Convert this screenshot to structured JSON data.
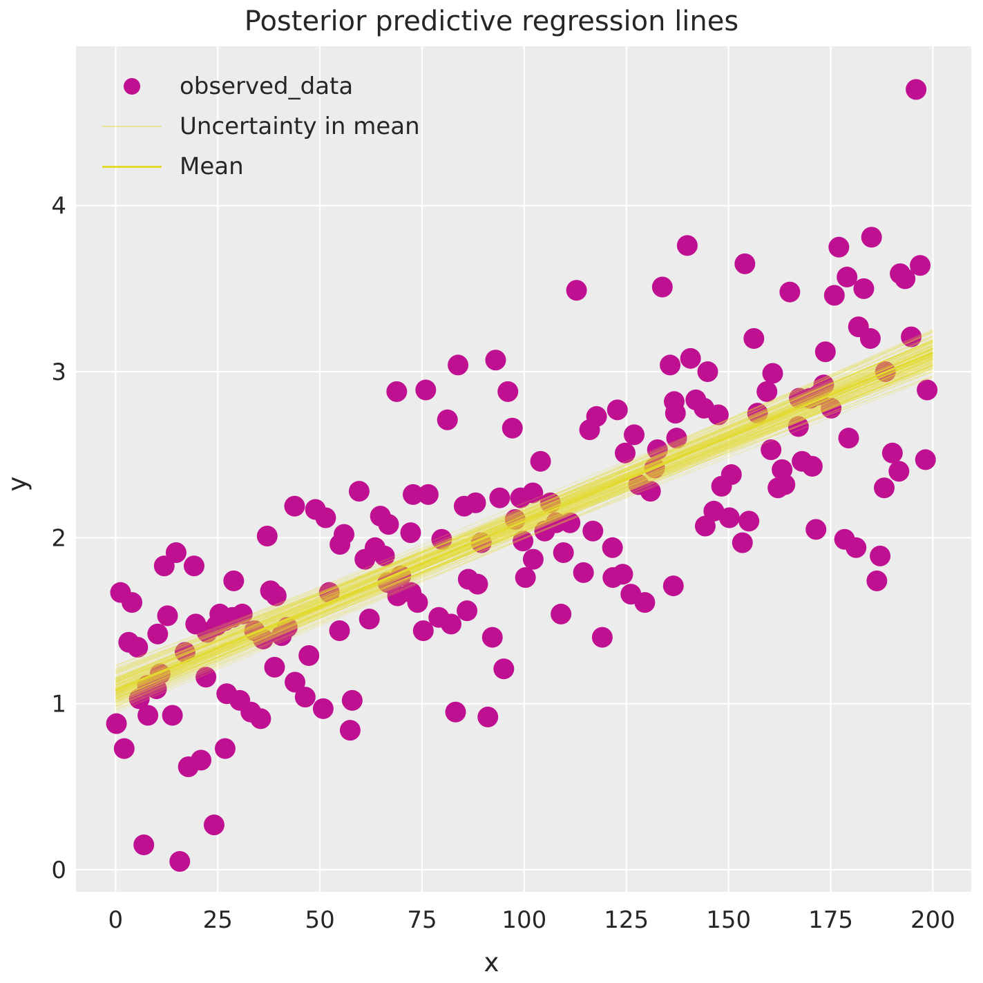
{
  "title": "Posterior predictive regression lines",
  "xlabel": "x",
  "ylabel": "y",
  "legend": [
    {
      "label": "observed_data",
      "marker": "dot"
    },
    {
      "label": "Uncertainty in mean",
      "marker": "thin-line"
    },
    {
      "label": "Mean",
      "marker": "line"
    }
  ],
  "colors": {
    "scatter": "#bf1091",
    "mean_line": "#e2da2e",
    "uncertainty_line": "#e2da2e",
    "uncertainty_opacity": 0.22,
    "plot_background": "#ececec",
    "gridline": "#ffffff",
    "text": "#262626"
  },
  "axes": {
    "xlim": [
      -9.7,
      209.4
    ],
    "ylim": [
      -0.133,
      4.96
    ],
    "x_tick_values": [
      0,
      25,
      50,
      75,
      100,
      125,
      150,
      175,
      200
    ],
    "x_tick_labels": [
      "0",
      "25",
      "50",
      "75",
      "100",
      "125",
      "150",
      "175",
      "200"
    ],
    "y_tick_values": [
      0,
      1,
      2,
      3,
      4
    ],
    "y_tick_labels": [
      "0",
      "1",
      "2",
      "3",
      "4"
    ],
    "grid": true
  },
  "chart_data": {
    "type": "scatter",
    "title": "Posterior predictive regression lines",
    "xlabel": "x",
    "ylabel": "y",
    "series": [
      {
        "name": "observed_data",
        "points": [
          [
            0.2,
            0.88
          ],
          [
            1.2,
            1.67
          ],
          [
            2.1,
            0.73
          ],
          [
            3.2,
            1.37
          ],
          [
            4.0,
            1.61
          ],
          [
            5.4,
            1.34
          ],
          [
            5.8,
            1.03
          ],
          [
            6.9,
            0.15
          ],
          [
            7.8,
            1.11
          ],
          [
            7.9,
            0.93
          ],
          [
            10.0,
            1.09
          ],
          [
            10.3,
            1.42
          ],
          [
            10.9,
            1.18
          ],
          [
            11.9,
            1.83
          ],
          [
            12.7,
            1.53
          ],
          [
            13.9,
            0.93
          ],
          [
            14.8,
            1.91
          ],
          [
            15.7,
            0.05
          ],
          [
            17.0,
            1.31
          ],
          [
            17.8,
            0.62
          ],
          [
            19.2,
            1.83
          ],
          [
            19.6,
            1.48
          ],
          [
            20.9,
            0.66
          ],
          [
            22.1,
            1.16
          ],
          [
            22.4,
            1.43
          ],
          [
            24.1,
            0.27
          ],
          [
            24.7,
            1.47
          ],
          [
            25.5,
            1.54
          ],
          [
            26.7,
            1.5
          ],
          [
            26.8,
            0.73
          ],
          [
            27.2,
            1.06
          ],
          [
            28.6,
            1.52
          ],
          [
            28.9,
            1.74
          ],
          [
            30.4,
            1.02
          ],
          [
            31.0,
            1.54
          ],
          [
            33.1,
            0.95
          ],
          [
            34.0,
            1.44
          ],
          [
            35.5,
            0.91
          ],
          [
            36.1,
            1.39
          ],
          [
            37.1,
            2.01
          ],
          [
            37.9,
            1.68
          ],
          [
            38.9,
            1.22
          ],
          [
            39.3,
            1.65
          ],
          [
            40.6,
            1.41
          ],
          [
            42.0,
            1.46
          ],
          [
            43.8,
            2.19
          ],
          [
            43.9,
            1.13
          ],
          [
            46.4,
            1.04
          ],
          [
            47.3,
            1.29
          ],
          [
            48.9,
            2.17
          ],
          [
            50.8,
            0.97
          ],
          [
            51.4,
            2.12
          ],
          [
            52.3,
            1.67
          ],
          [
            54.8,
            1.44
          ],
          [
            54.9,
            1.96
          ],
          [
            55.9,
            2.02
          ],
          [
            57.4,
            0.84
          ],
          [
            57.9,
            1.02
          ],
          [
            59.6,
            2.28
          ],
          [
            61.0,
            1.87
          ],
          [
            62.1,
            1.51
          ],
          [
            63.5,
            1.94
          ],
          [
            64.8,
            2.13
          ],
          [
            65.8,
            1.89
          ],
          [
            66.6,
            1.73
          ],
          [
            66.8,
            2.08
          ],
          [
            68.8,
            2.88
          ],
          [
            69.0,
            1.65
          ],
          [
            69.8,
            1.77
          ],
          [
            72.2,
            2.03
          ],
          [
            72.3,
            1.67
          ],
          [
            72.8,
            2.26
          ],
          [
            73.9,
            1.61
          ],
          [
            75.3,
            1.44
          ],
          [
            75.9,
            2.89
          ],
          [
            76.5,
            2.26
          ],
          [
            79.1,
            1.52
          ],
          [
            79.8,
            1.99
          ],
          [
            81.2,
            2.71
          ],
          [
            82.1,
            1.48
          ],
          [
            83.2,
            0.95
          ],
          [
            83.8,
            3.04
          ],
          [
            85.3,
            2.19
          ],
          [
            86.0,
            1.56
          ],
          [
            86.3,
            1.75
          ],
          [
            88.1,
            2.21
          ],
          [
            88.6,
            1.72
          ],
          [
            89.5,
            1.97
          ],
          [
            91.1,
            0.92
          ],
          [
            92.2,
            1.4
          ],
          [
            93.0,
            3.07
          ],
          [
            94.0,
            2.24
          ],
          [
            95.0,
            1.21
          ],
          [
            96.0,
            2.88
          ],
          [
            97.1,
            2.66
          ],
          [
            97.8,
            2.11
          ],
          [
            99.1,
            2.24
          ],
          [
            99.7,
            1.98
          ],
          [
            100.3,
            1.76
          ],
          [
            102.1,
            2.27
          ],
          [
            102.2,
            1.87
          ],
          [
            104.0,
            2.46
          ],
          [
            105.0,
            2.04
          ],
          [
            106.4,
            2.21
          ],
          [
            107.8,
            2.09
          ],
          [
            109.0,
            1.54
          ],
          [
            109.6,
            1.91
          ],
          [
            111.2,
            2.09
          ],
          [
            112.8,
            3.49
          ],
          [
            114.5,
            1.79
          ],
          [
            116.0,
            2.65
          ],
          [
            116.8,
            2.04
          ],
          [
            117.7,
            2.73
          ],
          [
            119.1,
            1.4
          ],
          [
            121.6,
            1.94
          ],
          [
            121.7,
            1.76
          ],
          [
            122.8,
            2.77
          ],
          [
            124.1,
            1.78
          ],
          [
            124.7,
            2.51
          ],
          [
            126.1,
            1.66
          ],
          [
            126.9,
            2.62
          ],
          [
            128.0,
            2.32
          ],
          [
            129.5,
            1.61
          ],
          [
            130.9,
            2.28
          ],
          [
            131.9,
            2.42
          ],
          [
            132.6,
            2.53
          ],
          [
            133.8,
            3.51
          ],
          [
            135.7,
            3.04
          ],
          [
            136.5,
            1.71
          ],
          [
            136.7,
            2.82
          ],
          [
            137.0,
            2.75
          ],
          [
            137.3,
            2.6
          ],
          [
            139.9,
            3.76
          ],
          [
            140.7,
            3.08
          ],
          [
            142.0,
            2.83
          ],
          [
            144.0,
            2.78
          ],
          [
            144.3,
            2.07
          ],
          [
            144.9,
            3.0
          ],
          [
            146.4,
            2.16
          ],
          [
            147.5,
            2.74
          ],
          [
            148.3,
            2.31
          ],
          [
            150.2,
            2.12
          ],
          [
            150.7,
            2.38
          ],
          [
            153.4,
            1.97
          ],
          [
            154.0,
            3.65
          ],
          [
            155.0,
            2.1
          ],
          [
            156.2,
            3.2
          ],
          [
            157.1,
            2.75
          ],
          [
            159.4,
            2.88
          ],
          [
            160.4,
            2.53
          ],
          [
            160.8,
            2.99
          ],
          [
            162.1,
            2.3
          ],
          [
            163.1,
            2.41
          ],
          [
            163.8,
            2.32
          ],
          [
            165.0,
            3.48
          ],
          [
            167.1,
            2.67
          ],
          [
            167.3,
            2.84
          ],
          [
            168.0,
            2.46
          ],
          [
            170.0,
            2.84
          ],
          [
            170.5,
            2.43
          ],
          [
            171.4,
            2.05
          ],
          [
            172.0,
            2.86
          ],
          [
            173.3,
            2.92
          ],
          [
            173.7,
            3.12
          ],
          [
            175.1,
            2.78
          ],
          [
            175.9,
            3.46
          ],
          [
            177.0,
            3.75
          ],
          [
            178.4,
            1.99
          ],
          [
            179.0,
            3.57
          ],
          [
            179.4,
            2.6
          ],
          [
            181.2,
            1.94
          ],
          [
            181.8,
            3.27
          ],
          [
            183.1,
            3.5
          ],
          [
            184.7,
            3.2
          ],
          [
            185.0,
            3.81
          ],
          [
            186.3,
            1.74
          ],
          [
            187.1,
            1.89
          ],
          [
            188.1,
            2.3
          ],
          [
            188.4,
            3.0
          ],
          [
            190.1,
            2.51
          ],
          [
            191.7,
            2.4
          ],
          [
            192.0,
            3.59
          ],
          [
            193.2,
            3.56
          ],
          [
            194.7,
            3.21
          ],
          [
            195.9,
            4.7
          ],
          [
            196.9,
            3.64
          ],
          [
            198.2,
            2.47
          ],
          [
            198.6,
            2.89
          ]
        ]
      }
    ],
    "mean_line": {
      "x_start": 0,
      "x_end": 200,
      "y_start": 1.08,
      "y_end": 3.115,
      "intercept": 1.08,
      "slope": 0.0102
    },
    "uncertainty_lines": {
      "n_lines": 120,
      "x_start": 0,
      "x_end": 200,
      "y_start_mean": 1.08,
      "y_start_std": 0.065,
      "y_end_mean": 3.115,
      "y_end_std": 0.065,
      "y_start_range": [
        0.91,
        1.25
      ],
      "y_end_range": [
        2.97,
        3.26
      ]
    },
    "marker_radius_px": 15,
    "legend_position": "upper left",
    "grid": true
  }
}
